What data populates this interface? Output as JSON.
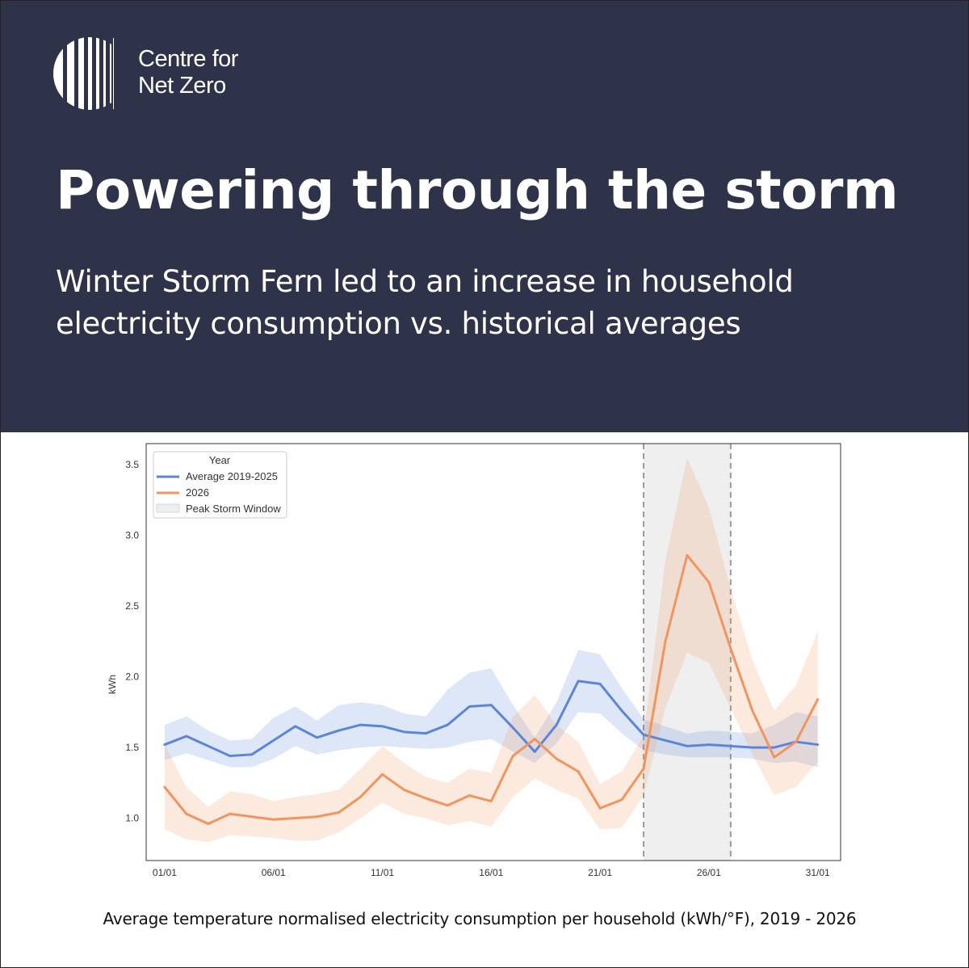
{
  "brand": {
    "line1": "Centre for",
    "line2": "Net Zero"
  },
  "headline": "Powering through the storm",
  "subheadline": "Winter Storm Fern led to an increase in household electricity consumption vs. historical averages",
  "caption": "Average temperature normalised electricity consumption per household (kWh/°F), 2019 - 2026",
  "colors": {
    "header_bg": "#2e3349",
    "avg": "#5b86d6",
    "y2026": "#f0955f"
  },
  "chart_data": {
    "type": "line",
    "xlabel": "",
    "ylabel": "kWh",
    "x": [
      1,
      2,
      3,
      4,
      5,
      6,
      7,
      8,
      9,
      10,
      11,
      12,
      13,
      14,
      15,
      16,
      17,
      18,
      19,
      20,
      21,
      22,
      23,
      24,
      25,
      26,
      27,
      28,
      29,
      30,
      31
    ],
    "xticks": [
      {
        "day": 1,
        "label": "01/01"
      },
      {
        "day": 6,
        "label": "06/01"
      },
      {
        "day": 11,
        "label": "11/01"
      },
      {
        "day": 16,
        "label": "16/01"
      },
      {
        "day": 21,
        "label": "21/01"
      },
      {
        "day": 26,
        "label": "26/01"
      },
      {
        "day": 31,
        "label": "31/01"
      }
    ],
    "yticks": [
      "1.0",
      "1.5",
      "2.0",
      "2.5",
      "3.0",
      "3.5"
    ],
    "xlim": [
      0.15,
      32.05
    ],
    "ylim": [
      0.7,
      3.65
    ],
    "legend": {
      "title": "Year",
      "position": "top-left",
      "band_label": "Peak Storm Window"
    },
    "series": [
      {
        "name": "Average 2019-2025",
        "color": "#5b86d6",
        "values": [
          1.52,
          1.58,
          1.51,
          1.44,
          1.45,
          1.55,
          1.65,
          1.57,
          1.62,
          1.66,
          1.65,
          1.61,
          1.6,
          1.66,
          1.79,
          1.8,
          1.64,
          1.47,
          1.66,
          1.97,
          1.95,
          1.76,
          1.59,
          1.55,
          1.51,
          1.52,
          1.51,
          1.5,
          1.5,
          1.54,
          1.52
        ],
        "lower": [
          1.41,
          1.46,
          1.41,
          1.36,
          1.36,
          1.42,
          1.51,
          1.45,
          1.48,
          1.5,
          1.51,
          1.5,
          1.49,
          1.5,
          1.54,
          1.56,
          1.47,
          1.39,
          1.53,
          1.75,
          1.74,
          1.6,
          1.48,
          1.45,
          1.43,
          1.43,
          1.43,
          1.42,
          1.39,
          1.4,
          1.36
        ],
        "upper": [
          1.66,
          1.72,
          1.62,
          1.55,
          1.56,
          1.71,
          1.79,
          1.69,
          1.8,
          1.82,
          1.8,
          1.74,
          1.72,
          1.91,
          2.03,
          2.06,
          1.8,
          1.57,
          1.82,
          2.19,
          2.16,
          1.92,
          1.7,
          1.65,
          1.6,
          1.62,
          1.61,
          1.6,
          1.66,
          1.75,
          1.72
        ]
      },
      {
        "name": "2026",
        "color": "#f0955f",
        "values": [
          1.22,
          1.03,
          0.96,
          1.03,
          1.01,
          0.99,
          1.0,
          1.01,
          1.04,
          1.15,
          1.31,
          1.2,
          1.14,
          1.09,
          1.16,
          1.12,
          1.44,
          1.56,
          1.42,
          1.33,
          1.07,
          1.13,
          1.35,
          2.25,
          2.86,
          2.67,
          2.2,
          1.76,
          1.43,
          1.54,
          1.84
        ],
        "lower": [
          0.92,
          0.85,
          0.83,
          0.88,
          0.87,
          0.86,
          0.84,
          0.84,
          0.9,
          1.0,
          1.11,
          1.03,
          1.0,
          0.95,
          0.98,
          0.94,
          1.15,
          1.28,
          1.2,
          1.14,
          0.92,
          0.93,
          1.16,
          1.78,
          2.17,
          2.1,
          1.78,
          1.45,
          1.16,
          1.22,
          1.4
        ],
        "upper": [
          1.52,
          1.22,
          1.08,
          1.19,
          1.17,
          1.12,
          1.15,
          1.17,
          1.2,
          1.35,
          1.51,
          1.39,
          1.29,
          1.25,
          1.35,
          1.32,
          1.72,
          1.87,
          1.66,
          1.54,
          1.24,
          1.33,
          1.58,
          2.82,
          3.55,
          3.2,
          2.62,
          2.12,
          1.76,
          1.94,
          2.32
        ]
      }
    ],
    "shaded_window": {
      "label": "Peak Storm Window",
      "x_start": 23.0,
      "x_end": 27.0
    }
  }
}
